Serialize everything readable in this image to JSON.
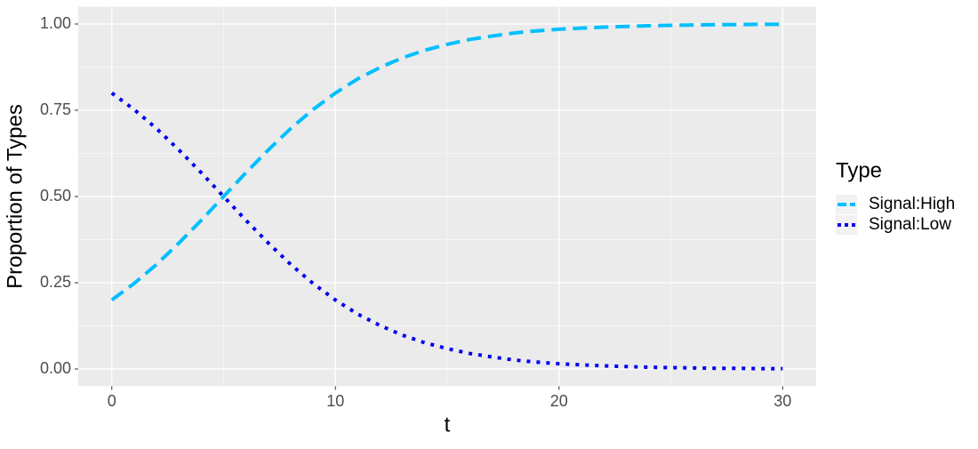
{
  "chart_data": {
    "type": "line",
    "x_label": "t",
    "y_label": "Proportion of Types",
    "x": [
      0,
      1,
      2,
      3,
      4,
      5,
      6,
      7,
      8,
      9,
      10,
      11,
      12,
      13,
      14,
      15,
      16,
      17,
      18,
      19,
      20,
      21,
      22,
      23,
      24,
      25,
      26,
      27,
      28,
      29,
      30
    ],
    "series": [
      {
        "name": "Signal:High",
        "color": "#00bfff",
        "dash": "dashed",
        "values": [
          0.2,
          0.248,
          0.303,
          0.365,
          0.431,
          0.5,
          0.569,
          0.635,
          0.697,
          0.752,
          0.8,
          0.841,
          0.874,
          0.902,
          0.924,
          0.941,
          0.955,
          0.965,
          0.974,
          0.98,
          0.985,
          0.988,
          0.991,
          0.993,
          0.995,
          0.996,
          0.997,
          0.998,
          0.998,
          0.999,
          0.999
        ]
      },
      {
        "name": "Signal:Low",
        "color": "#0000ee",
        "dash": "dotted",
        "values": [
          0.8,
          0.752,
          0.697,
          0.635,
          0.569,
          0.5,
          0.431,
          0.365,
          0.303,
          0.248,
          0.2,
          0.159,
          0.126,
          0.098,
          0.076,
          0.059,
          0.045,
          0.035,
          0.026,
          0.02,
          0.015,
          0.012,
          0.009,
          0.007,
          0.005,
          0.004,
          0.003,
          0.002,
          0.002,
          0.001,
          0.001
        ]
      }
    ],
    "legend_title": "Type",
    "legend_position": "right",
    "xlim": [
      -1.5,
      31.5
    ],
    "xticks": [
      0,
      10,
      20,
      30
    ],
    "ylim": [
      -0.05,
      1.05
    ],
    "yticks": [
      {
        "value": 0,
        "label": "0.00"
      },
      {
        "value": 0.25,
        "label": "0.25"
      },
      {
        "value": 0.5,
        "label": "0.50"
      },
      {
        "value": 0.75,
        "label": "0.75"
      },
      {
        "value": 1,
        "label": "1.00"
      }
    ],
    "grid": true
  }
}
